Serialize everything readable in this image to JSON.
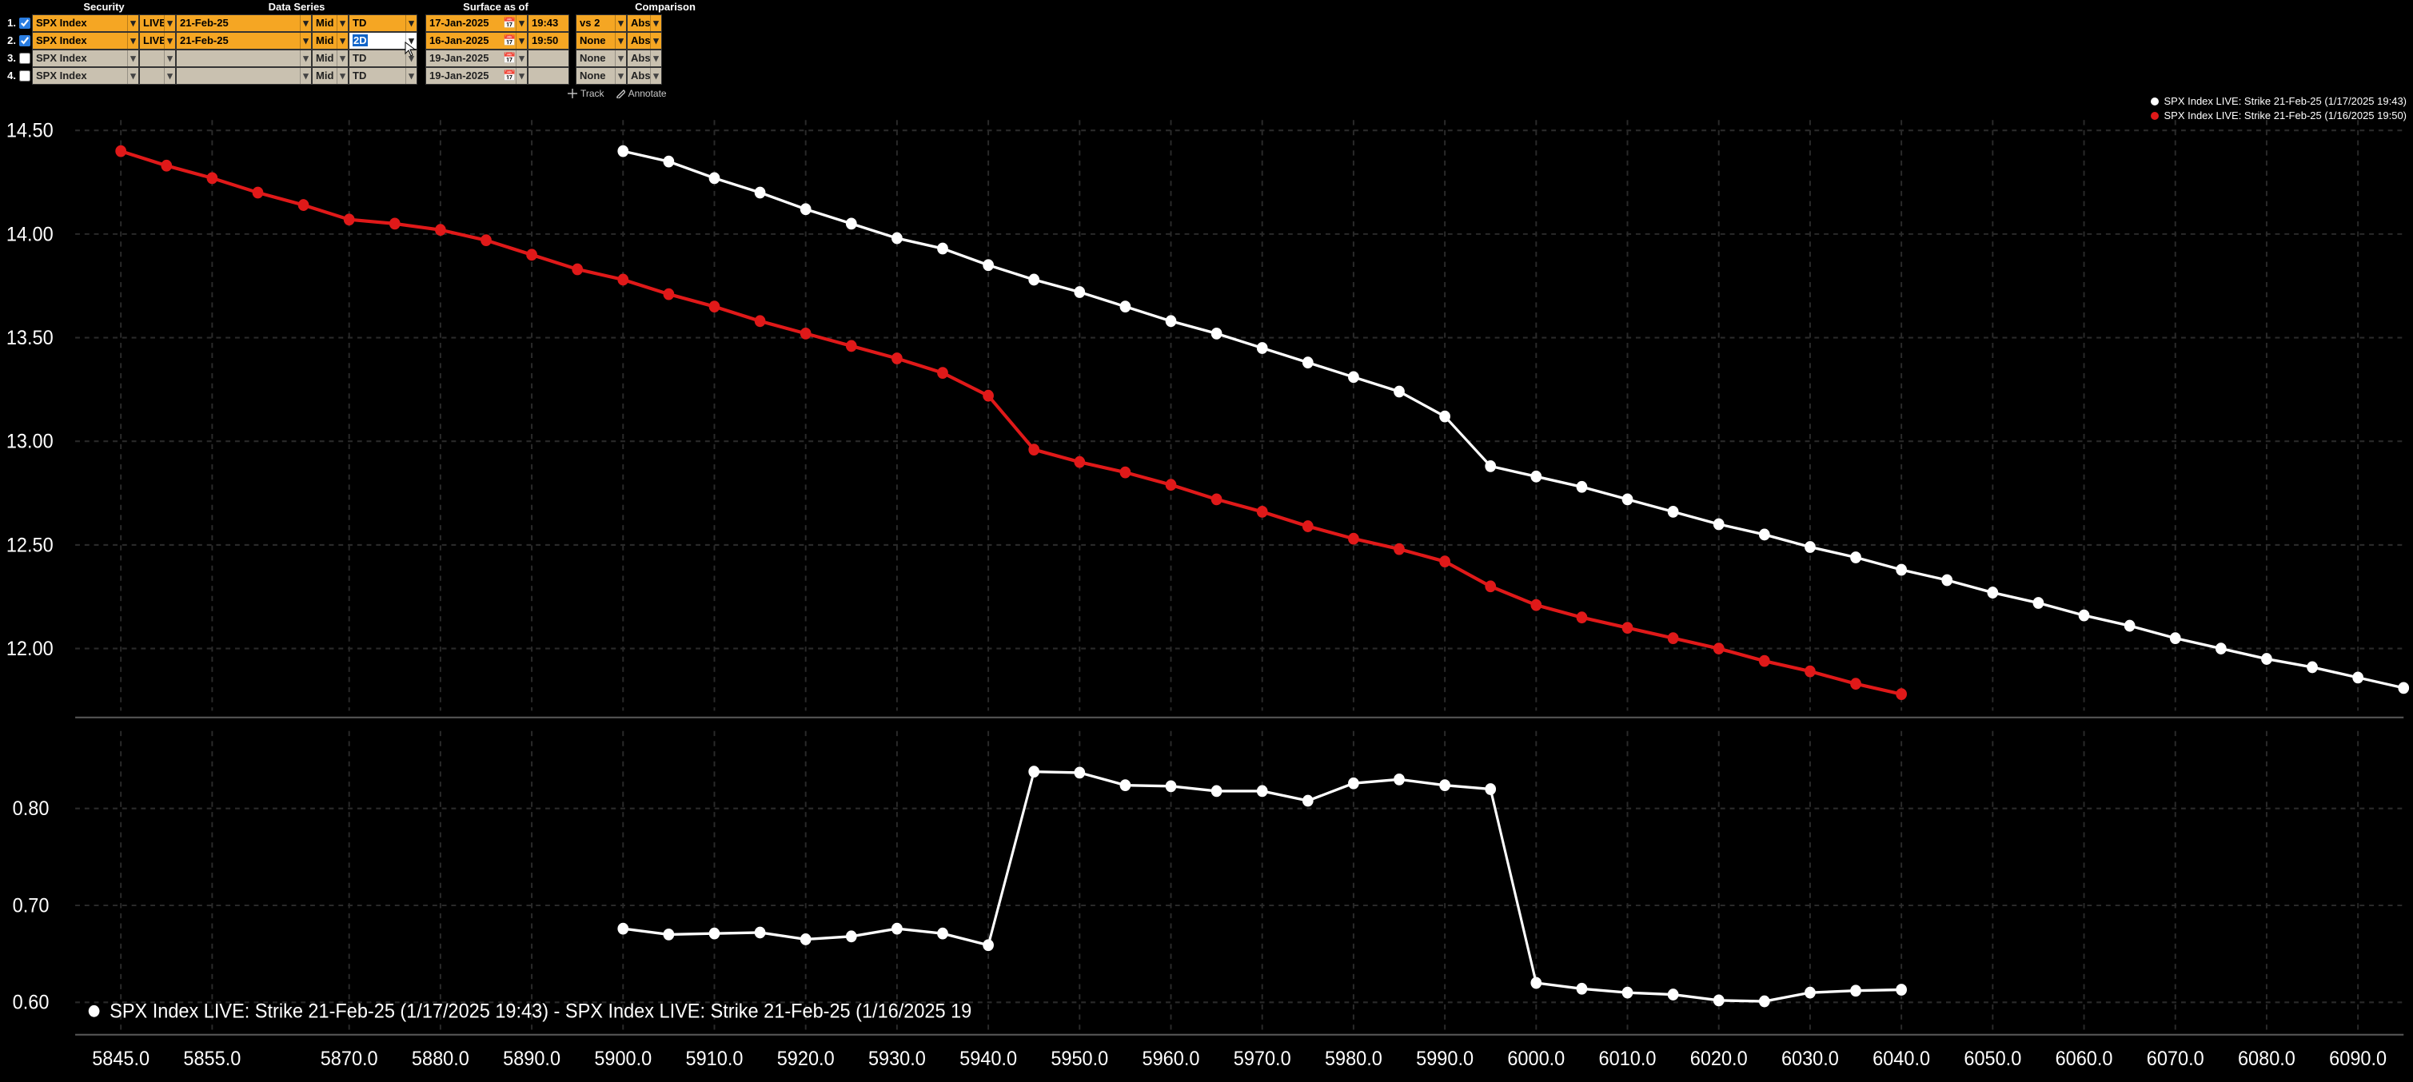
{
  "headers": {
    "security": "Security",
    "data_series": "Data Series",
    "surface_asof": "Surface as of",
    "comparison": "Comparison"
  },
  "rows": [
    {
      "n": "1.",
      "checked": true,
      "active": true,
      "security": "SPX Index",
      "live": "LIVE",
      "date": "21-Feb-25",
      "mid": "Mid",
      "td": "TD",
      "td_edit": false,
      "surf_date": "17-Jan-2025",
      "surf_time": "19:43",
      "cmp": "vs 2",
      "abs": "Abs"
    },
    {
      "n": "2.",
      "checked": true,
      "active": true,
      "security": "SPX Index",
      "live": "LIVE",
      "date": "21-Feb-25",
      "mid": "Mid",
      "td": "2D",
      "td_edit": true,
      "surf_date": "16-Jan-2025",
      "surf_time": "19:50",
      "cmp": "None",
      "abs": "Abs"
    },
    {
      "n": "3.",
      "checked": false,
      "active": false,
      "security": "SPX Index",
      "live": "",
      "date": "",
      "mid": "Mid",
      "td": "TD",
      "td_edit": false,
      "surf_date": "19-Jan-2025",
      "surf_time": "",
      "cmp": "None",
      "abs": "Abs"
    },
    {
      "n": "4.",
      "checked": false,
      "active": false,
      "security": "SPX Index",
      "live": "",
      "date": "",
      "mid": "Mid",
      "td": "TD",
      "td_edit": false,
      "surf_date": "19-Jan-2025",
      "surf_time": "",
      "cmp": "None",
      "abs": "Abs"
    }
  ],
  "toolbar": {
    "track": "Track",
    "annotate": "Annotate"
  },
  "legend": {
    "s1": {
      "color": "#ffffff",
      "text": "SPX Index LIVE: Strike 21-Feb-25 (1/17/2025 19:43)"
    },
    "s2": {
      "color": "#e01919",
      "text": "SPX Index LIVE: Strike 21-Feb-25 (1/16/2025 19:50)"
    }
  },
  "diff_caption": "SPX Index LIVE: Strike 21-Feb-25 (1/17/2025 19:43) - SPX Index LIVE: Strike 21-Feb-25 (1/16/2025 19",
  "chart": {
    "type": "line-scatter",
    "x": {
      "min": 5840,
      "max": 6095,
      "ticks": [
        5845,
        5855,
        5870,
        5880,
        5890,
        5900,
        5910,
        5920,
        5930,
        5940,
        5950,
        5960,
        5970,
        5980,
        5990,
        6000,
        6010,
        6020,
        6030,
        6040,
        6050,
        6060,
        6070,
        6080,
        6090
      ]
    },
    "top": {
      "y": {
        "min": 11.7,
        "max": 14.55,
        "ticks": [
          12.0,
          12.5,
          13.0,
          13.5,
          14.0,
          14.5
        ]
      },
      "grid_color": "#2a2a2a",
      "series": [
        {
          "id": "s1",
          "color": "#ffffff",
          "marker": "circle",
          "marker_size": 3.5,
          "line_width": 1.6,
          "x": [
            5900,
            5905,
            5910,
            5915,
            5920,
            5925,
            5930,
            5935,
            5940,
            5945,
            5950,
            5955,
            5960,
            5965,
            5970,
            5975,
            5980,
            5985,
            5990,
            5995,
            6000,
            6005,
            6010,
            6015,
            6020,
            6025,
            6030,
            6035,
            6040,
            6045,
            6050,
            6055,
            6060,
            6065,
            6070,
            6075,
            6080,
            6085,
            6090,
            6095
          ],
          "y": [
            14.4,
            14.35,
            14.27,
            14.2,
            14.12,
            14.05,
            13.98,
            13.93,
            13.85,
            13.78,
            13.72,
            13.65,
            13.58,
            13.52,
            13.45,
            13.38,
            13.31,
            13.24,
            13.12,
            12.88,
            12.83,
            12.78,
            12.72,
            12.66,
            12.6,
            12.55,
            12.49,
            12.44,
            12.38,
            12.33,
            12.27,
            12.22,
            12.16,
            12.11,
            12.05,
            12.0,
            11.95,
            11.91,
            11.86,
            11.81
          ]
        },
        {
          "id": "s2",
          "color": "#e01919",
          "marker": "circle",
          "marker_size": 3.5,
          "line_width": 2.0,
          "x": [
            5845,
            5850,
            5855,
            5860,
            5865,
            5870,
            5875,
            5880,
            5885,
            5890,
            5895,
            5900,
            5905,
            5910,
            5915,
            5920,
            5925,
            5930,
            5935,
            5940,
            5945,
            5950,
            5955,
            5960,
            5965,
            5970,
            5975,
            5980,
            5985,
            5990,
            5995,
            6000,
            6005,
            6010,
            6015,
            6020,
            6025,
            6030,
            6035,
            6040
          ],
          "y": [
            14.4,
            14.33,
            14.27,
            14.2,
            14.14,
            14.07,
            14.05,
            14.02,
            13.97,
            13.9,
            13.83,
            13.78,
            13.71,
            13.65,
            13.58,
            13.52,
            13.46,
            13.4,
            13.33,
            13.22,
            12.96,
            12.9,
            12.85,
            12.79,
            12.72,
            12.66,
            12.59,
            12.53,
            12.48,
            12.42,
            12.3,
            12.21,
            12.15,
            12.1,
            12.05,
            12.0,
            11.94,
            11.89,
            11.83,
            11.78
          ]
        }
      ]
    },
    "bottom": {
      "y": {
        "min": 0.57,
        "max": 0.88,
        "ticks": [
          0.6,
          0.7,
          0.8
        ]
      },
      "series": [
        {
          "id": "diff",
          "color": "#ffffff",
          "marker": "circle",
          "marker_size": 3.5,
          "line_width": 1.6,
          "x": [
            5900,
            5905,
            5910,
            5915,
            5920,
            5925,
            5930,
            5935,
            5940,
            5945,
            5950,
            5955,
            5960,
            5965,
            5970,
            5975,
            5980,
            5985,
            5990,
            5995,
            6000,
            6005,
            6010,
            6015,
            6020,
            6025,
            6030,
            6035,
            6040
          ],
          "y": [
            0.676,
            0.67,
            0.671,
            0.672,
            0.665,
            0.668,
            0.676,
            0.671,
            0.659,
            0.838,
            0.837,
            0.824,
            0.823,
            0.818,
            0.818,
            0.808,
            0.826,
            0.83,
            0.824,
            0.82,
            0.62,
            0.614,
            0.61,
            0.608,
            0.602,
            0.601,
            0.61,
            0.612,
            0.613
          ]
        }
      ]
    },
    "background_color": "#000000",
    "tick_fontsize": 12,
    "tick_color": "#ffffff"
  }
}
